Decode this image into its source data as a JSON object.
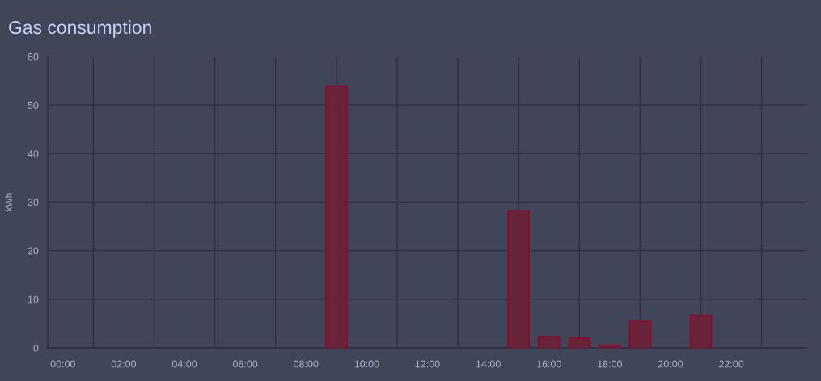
{
  "chart_data": {
    "type": "bar",
    "title": "Gas consumption",
    "ylabel": "kWh",
    "x": [
      9,
      15,
      16,
      17,
      18,
      19,
      21
    ],
    "values": [
      53.9,
      28.2,
      2.3,
      2.0,
      0.5,
      5.4,
      6.7
    ],
    "color": "#6a243a",
    "xlim": [
      -0.5,
      24.5
    ],
    "xticks": [
      {
        "value": 0,
        "label": "00:00"
      },
      {
        "value": 1,
        "label": null
      },
      {
        "value": 2,
        "label": "02:00"
      },
      {
        "value": 3,
        "label": null
      },
      {
        "value": 4,
        "label": "04:00"
      },
      {
        "value": 5,
        "label": null
      },
      {
        "value": 6,
        "label": "06:00"
      },
      {
        "value": 7,
        "label": null
      },
      {
        "value": 8,
        "label": "08:00"
      },
      {
        "value": 9,
        "label": null
      },
      {
        "value": 10,
        "label": "10:00"
      },
      {
        "value": 11,
        "label": null
      },
      {
        "value": 12,
        "label": "12:00"
      },
      {
        "value": 13,
        "label": null
      },
      {
        "value": 14,
        "label": "14:00"
      },
      {
        "value": 15,
        "label": null
      },
      {
        "value": 16,
        "label": "16:00"
      },
      {
        "value": 17,
        "label": null
      },
      {
        "value": 18,
        "label": "18:00"
      },
      {
        "value": 19,
        "label": null
      },
      {
        "value": 20,
        "label": "20:00"
      },
      {
        "value": 21,
        "label": null
      },
      {
        "value": 22,
        "label": "22:00"
      },
      {
        "value": 23,
        "label": null
      }
    ],
    "ylim": [
      0,
      60
    ],
    "yticks": [
      0,
      10,
      20,
      30,
      40,
      50,
      60
    ],
    "grid": true
  }
}
